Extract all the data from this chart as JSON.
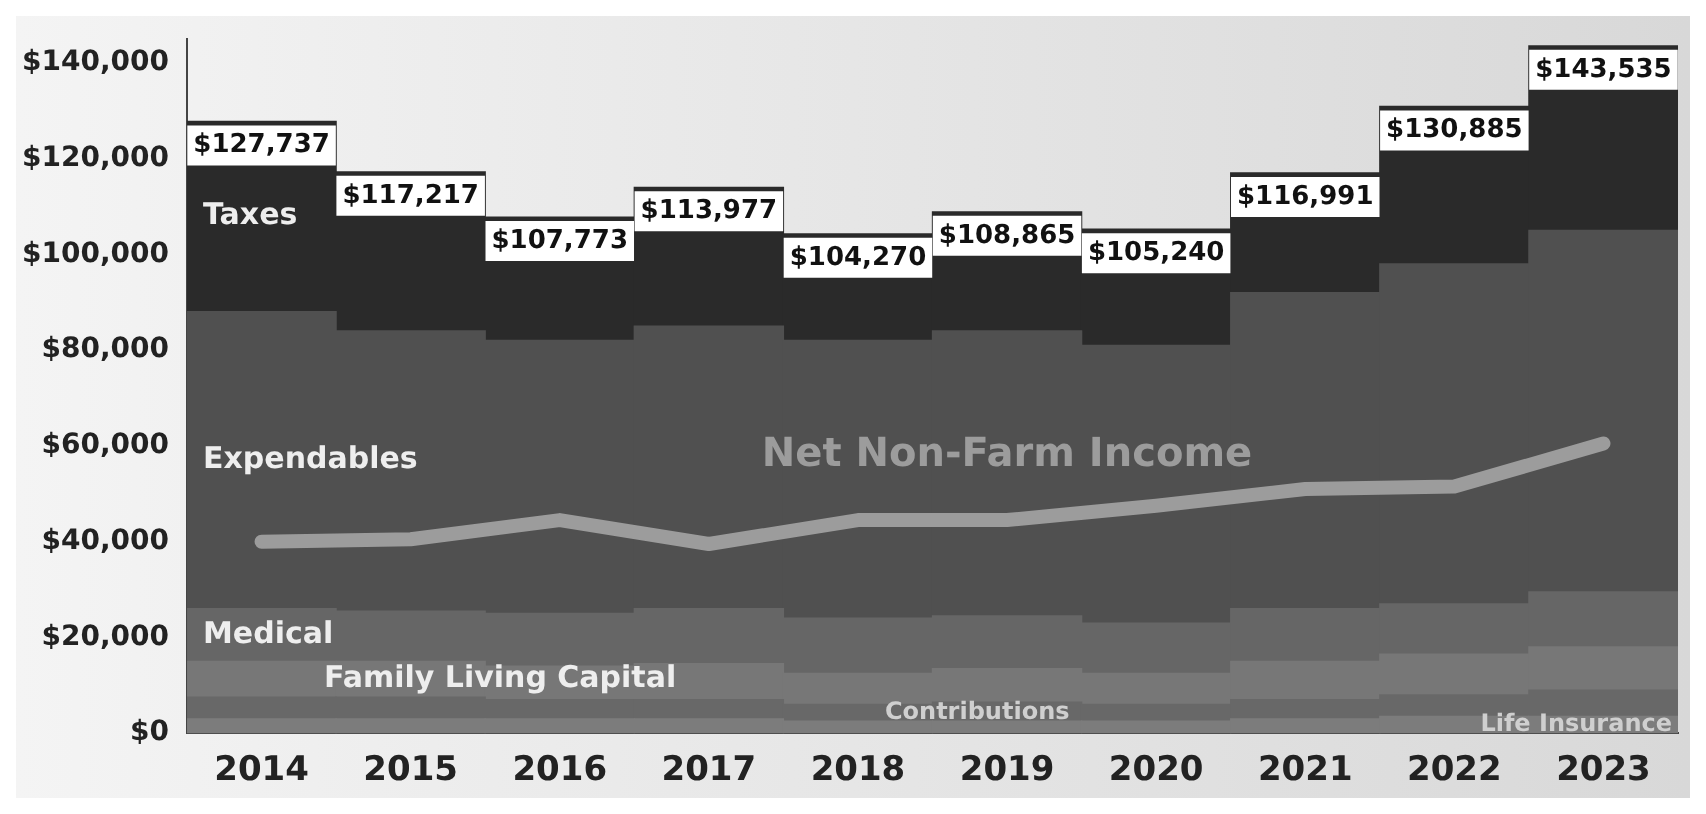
{
  "chart_data": {
    "type": "bar",
    "stacked": true,
    "categories": [
      "2014",
      "2015",
      "2016",
      "2017",
      "2018",
      "2019",
      "2020",
      "2021",
      "2022",
      "2023"
    ],
    "series": [
      {
        "name": "Life Insurance",
        "color": "#7c7c7c",
        "values": [
          3000,
          3000,
          3000,
          3000,
          2500,
          2500,
          2500,
          3000,
          3500,
          3500
        ]
      },
      {
        "name": "Contributions",
        "color": "#686868",
        "values": [
          4500,
          4500,
          4000,
          4000,
          3500,
          4000,
          3500,
          4000,
          4500,
          5500
        ]
      },
      {
        "name": "Family Living Capital",
        "color": "#777777",
        "values": [
          7500,
          7500,
          7000,
          7500,
          6500,
          7000,
          6500,
          8000,
          8500,
          9000
        ]
      },
      {
        "name": "Medical",
        "color": "#666666",
        "values": [
          11000,
          10500,
          11000,
          11500,
          11500,
          11000,
          10500,
          11000,
          10500,
          11500
        ]
      },
      {
        "name": "Expendables",
        "color": "#505050",
        "values": [
          62000,
          58500,
          57000,
          59000,
          58000,
          59500,
          58000,
          66000,
          71000,
          75500
        ]
      },
      {
        "name": "Taxes",
        "color": "#2a2a2a",
        "values": [
          39737,
          33217,
          25773,
          28977,
          22270,
          24865,
          24240,
          24991,
          32885,
          38535
        ]
      },
      {
        "name": "Net Non-Farm Income",
        "type": "line",
        "color": "#9c9c9c",
        "values": [
          40000,
          40500,
          44500,
          39500,
          44500,
          44500,
          47500,
          51000,
          51500,
          60500
        ]
      }
    ],
    "totals": [
      "$127,737",
      "$117,217",
      "$107,773",
      "$113,977",
      "$104,270",
      "$108,865",
      "$105,240",
      "$116,991",
      "$130,885",
      "$143,535"
    ],
    "ylim": [
      0,
      145000
    ],
    "yticks": [
      {
        "value": 0,
        "label": "$0"
      },
      {
        "value": 20000,
        "label": "$20,000"
      },
      {
        "value": 40000,
        "label": "$40,000"
      },
      {
        "value": 60000,
        "label": "$60,000"
      },
      {
        "value": 80000,
        "label": "$80,000"
      },
      {
        "value": 100000,
        "label": "$100,000"
      },
      {
        "value": 120000,
        "label": "$120,000"
      },
      {
        "value": 140000,
        "label": "$140,000"
      }
    ],
    "grid": false,
    "legend": false
  }
}
